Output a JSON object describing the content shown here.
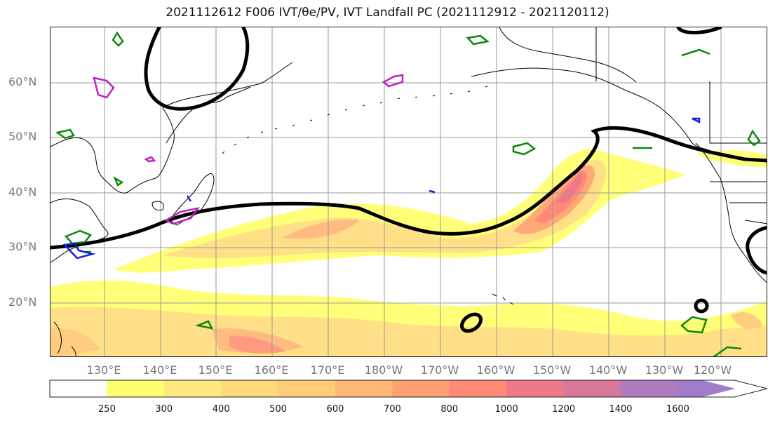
{
  "title": "2021112612 F006 IVT/θe/PV, IVT Landfall PC (2021112912 - 2021120112)",
  "map": {
    "lat_labels": [
      "60°N",
      "50°N",
      "40°N",
      "30°N",
      "20°N"
    ],
    "lon_labels": [
      "130°E",
      "140°E",
      "150°E",
      "160°E",
      "170°E",
      "180°W",
      "170°W",
      "160°W",
      "150°W",
      "140°W",
      "130°W",
      "120°W"
    ],
    "contour_colors": {
      "theta_e": "#000000",
      "pv_green": "#0a8a0a",
      "pv_magenta": "#c020c0",
      "pv_blue": "#1020e0"
    }
  },
  "colorbar": {
    "ticks": [
      "250",
      "300",
      "400",
      "500",
      "600",
      "700",
      "800",
      "1000",
      "1200",
      "1400",
      "1600"
    ],
    "colors": [
      "#ffffff",
      "#ffff70",
      "#ffe880",
      "#ffda78",
      "#ffcc78",
      "#ffb878",
      "#ffa070",
      "#ff8a78",
      "#ee7888",
      "#d87898",
      "#b07cc0",
      "#a07ccc"
    ]
  }
}
